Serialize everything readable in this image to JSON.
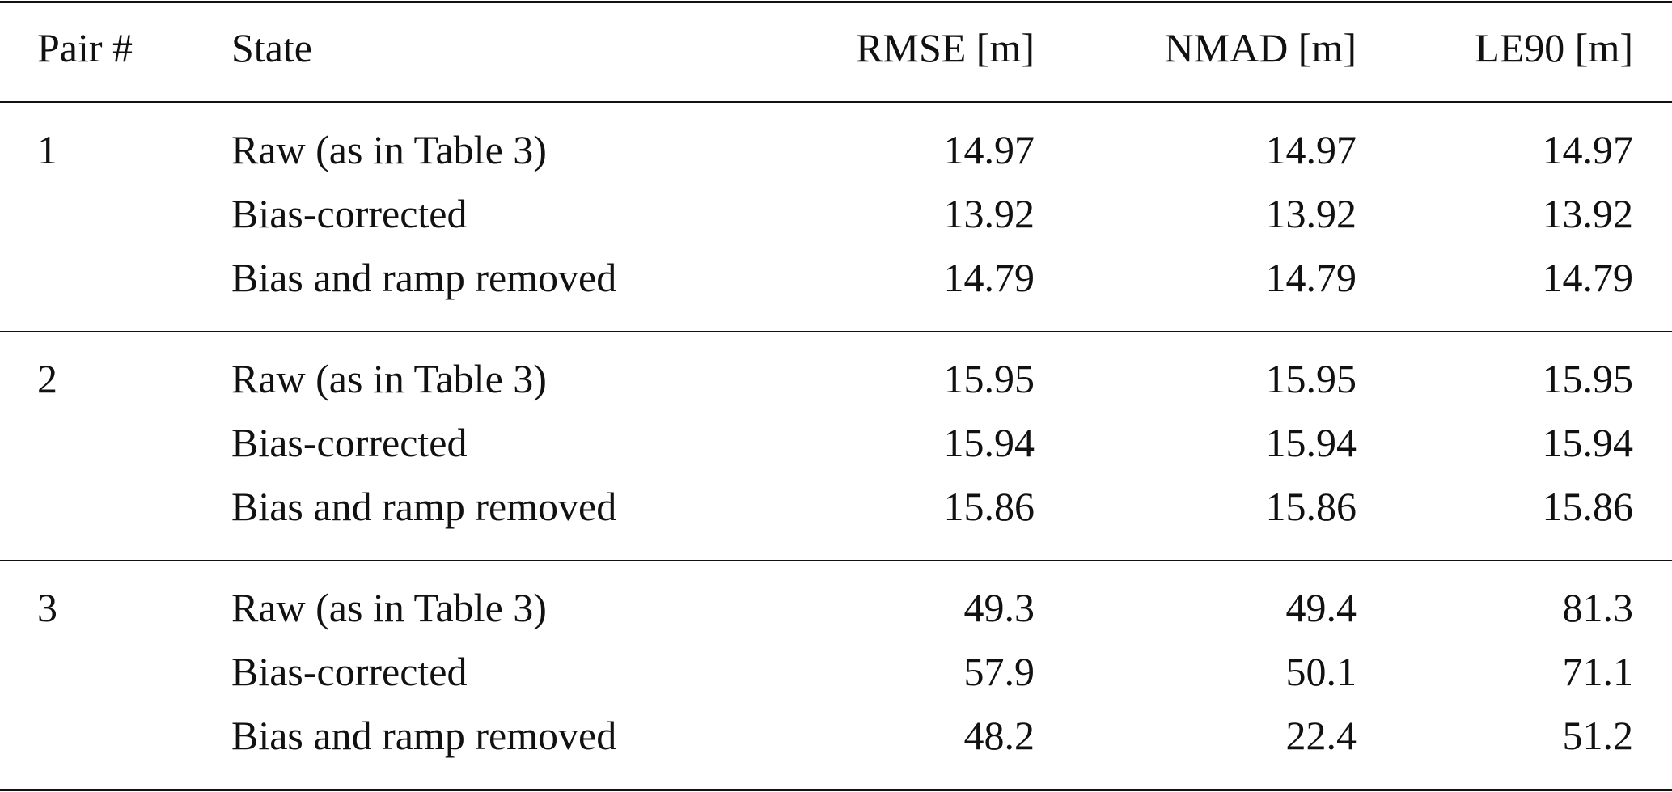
{
  "table": {
    "header": [
      "Pair #",
      "State",
      "RMSE [m]",
      "NMAD [m]",
      "LE90 [m]"
    ],
    "groups": [
      {
        "pair": "1",
        "rows": [
          [
            "Raw (as in Table 3)",
            "14.97",
            "14.97",
            "14.97"
          ],
          [
            "Bias-corrected",
            "13.92",
            "13.92",
            "13.92"
          ],
          [
            "Bias and ramp removed",
            "14.79",
            "14.79",
            "14.79"
          ]
        ]
      },
      {
        "pair": "2",
        "rows": [
          [
            "Raw (as in Table 3)",
            "15.95",
            "15.95",
            "15.95"
          ],
          [
            "Bias-corrected",
            "15.94",
            "15.94",
            "15.94"
          ],
          [
            "Bias and ramp removed",
            "15.86",
            "15.86",
            "15.86"
          ]
        ]
      },
      {
        "pair": "3",
        "rows": [
          [
            "Raw (as in Table 3)",
            "49.3",
            "49.4",
            "81.3"
          ],
          [
            "Bias-corrected",
            "57.9",
            "50.1",
            "71.1"
          ],
          [
            "Bias and ramp removed",
            "48.2",
            "22.4",
            "51.2"
          ]
        ]
      }
    ]
  }
}
